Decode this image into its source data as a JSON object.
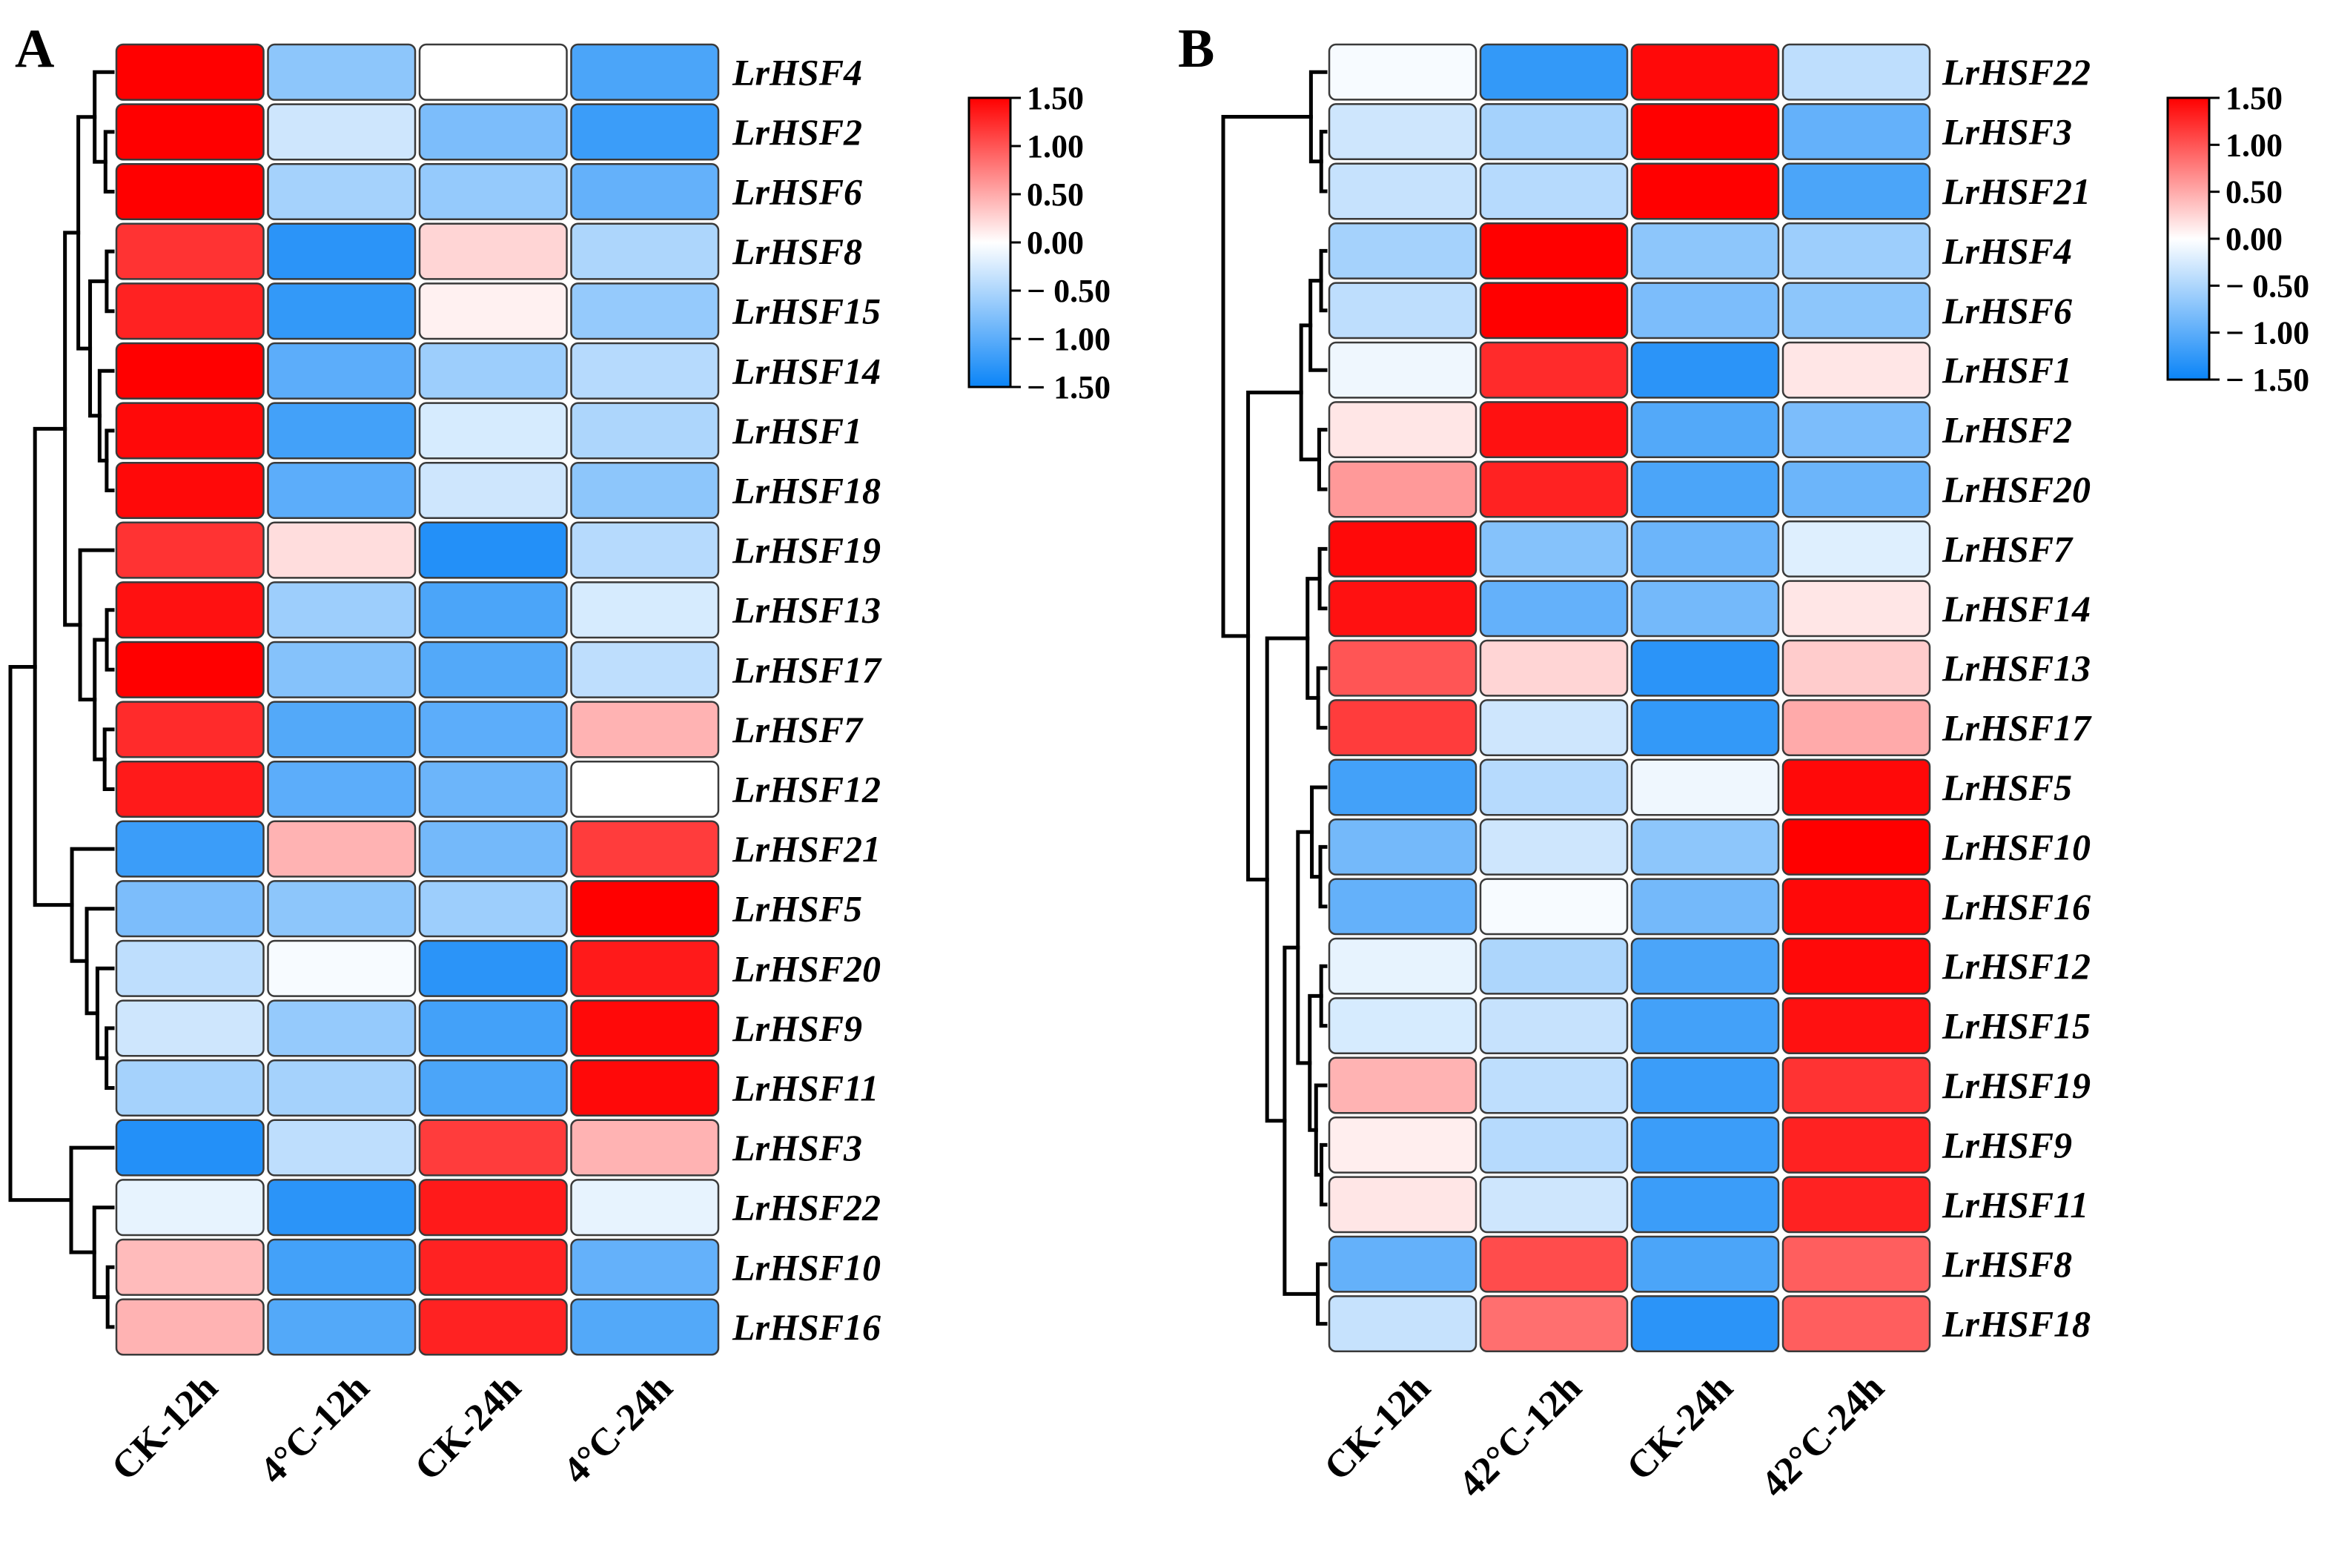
{
  "chart_data": [
    {
      "type": "heatmap",
      "panel": "A",
      "columns": [
        "CK-12h",
        "4°C-12h",
        "CK-24h",
        "4°C-24h"
      ],
      "rows": [
        "LrHSF4",
        "LrHSF2",
        "LrHSF6",
        "LrHSF8",
        "LrHSF15",
        "LrHSF14",
        "LrHSF1",
        "LrHSF18",
        "LrHSF19",
        "LrHSF13",
        "LrHSF17",
        "LrHSF7",
        "LrHSF12",
        "LrHSF21",
        "LrHSF5",
        "LrHSF20",
        "LrHSF9",
        "LrHSF11",
        "LrHSF3",
        "LrHSF22",
        "LrHSF10",
        "LrHSF16"
      ],
      "values": [
        [
          1.5,
          -0.7,
          0.0,
          -1.1
        ],
        [
          1.5,
          -0.3,
          -0.8,
          -1.2
        ],
        [
          1.5,
          -0.55,
          -0.65,
          -0.95
        ],
        [
          1.2,
          -1.3,
          0.25,
          -0.5
        ],
        [
          1.3,
          -1.25,
          0.08,
          -0.65
        ],
        [
          1.5,
          -1.0,
          -0.6,
          -0.45
        ],
        [
          1.45,
          -1.15,
          -0.25,
          -0.5
        ],
        [
          1.45,
          -1.0,
          -0.3,
          -0.7
        ],
        [
          1.2,
          0.2,
          -1.35,
          -0.45
        ],
        [
          1.4,
          -0.6,
          -1.1,
          -0.25
        ],
        [
          1.5,
          -0.75,
          -1.05,
          -0.4
        ],
        [
          1.25,
          -1.05,
          -1.0,
          0.45
        ],
        [
          1.35,
          -1.0,
          -0.9,
          0.0
        ],
        [
          -1.2,
          0.45,
          -0.85,
          1.15
        ],
        [
          -0.8,
          -0.7,
          -0.6,
          1.5
        ],
        [
          -0.4,
          -0.05,
          -1.3,
          1.35
        ],
        [
          -0.3,
          -0.65,
          -1.15,
          1.45
        ],
        [
          -0.55,
          -0.55,
          -1.1,
          1.45
        ],
        [
          -1.35,
          -0.4,
          1.15,
          0.45
        ],
        [
          -0.15,
          -1.3,
          1.35,
          -0.15
        ],
        [
          0.4,
          -1.15,
          1.3,
          -0.95
        ],
        [
          0.45,
          -1.05,
          1.3,
          -1.05
        ]
      ],
      "colorbar": {
        "ticks": [
          "1.50",
          "1.00",
          "0.50",
          "0.00",
          "− 0.50",
          "− 1.00",
          "− 1.50"
        ],
        "min": -1.5,
        "max": 1.5
      },
      "colors": {
        "low": "#0a84f7",
        "mid": "#ffffff",
        "high": "#ff0000"
      }
    },
    {
      "type": "heatmap",
      "panel": "B",
      "columns": [
        "CK-12h",
        "42°C-12h",
        "CK-24h",
        "42°C-24h"
      ],
      "rows": [
        "LrHSF22",
        "LrHSF3",
        "LrHSF21",
        "LrHSF4",
        "LrHSF6",
        "LrHSF1",
        "LrHSF2",
        "LrHSF20",
        "LrHSF7",
        "LrHSF14",
        "LrHSF13",
        "LrHSF17",
        "LrHSF5",
        "LrHSF10",
        "LrHSF16",
        "LrHSF12",
        "LrHSF15",
        "LrHSF19",
        "LrHSF9",
        "LrHSF11",
        "LrHSF8",
        "LrHSF18"
      ],
      "values": [
        [
          -0.05,
          -1.25,
          1.45,
          -0.4
        ],
        [
          -0.3,
          -0.55,
          1.5,
          -0.95
        ],
        [
          -0.35,
          -0.45,
          1.5,
          -1.1
        ],
        [
          -0.55,
          1.5,
          -0.7,
          -0.6
        ],
        [
          -0.4,
          1.5,
          -0.8,
          -0.7
        ],
        [
          -0.1,
          1.25,
          -1.3,
          0.15
        ],
        [
          0.15,
          1.4,
          -1.05,
          -0.8
        ],
        [
          0.6,
          1.3,
          -1.1,
          -0.9
        ],
        [
          1.45,
          -0.75,
          -0.9,
          -0.2
        ],
        [
          1.4,
          -0.95,
          -0.85,
          0.15
        ],
        [
          1.0,
          0.25,
          -1.3,
          0.3
        ],
        [
          1.15,
          -0.3,
          -1.25,
          0.5
        ],
        [
          -1.15,
          -0.45,
          -0.1,
          1.45
        ],
        [
          -0.85,
          -0.3,
          -0.7,
          1.5
        ],
        [
          -0.95,
          -0.05,
          -0.85,
          1.45
        ],
        [
          -0.15,
          -0.5,
          -1.1,
          1.45
        ],
        [
          -0.25,
          -0.35,
          -1.15,
          1.4
        ],
        [
          0.45,
          -0.4,
          -1.2,
          1.2
        ],
        [
          0.1,
          -0.45,
          -1.2,
          1.3
        ],
        [
          0.15,
          -0.3,
          -1.2,
          1.3
        ],
        [
          -0.95,
          1.05,
          -1.1,
          0.95
        ],
        [
          -0.35,
          0.85,
          -1.3,
          0.95
        ]
      ],
      "colorbar": {
        "ticks": [
          "1.50",
          "1.00",
          "0.50",
          "0.00",
          "− 0.50",
          "− 1.00",
          "− 1.50"
        ],
        "min": -1.5,
        "max": 1.5
      },
      "colors": {
        "low": "#0a84f7",
        "mid": "#ffffff",
        "high": "#ff0000"
      }
    }
  ]
}
